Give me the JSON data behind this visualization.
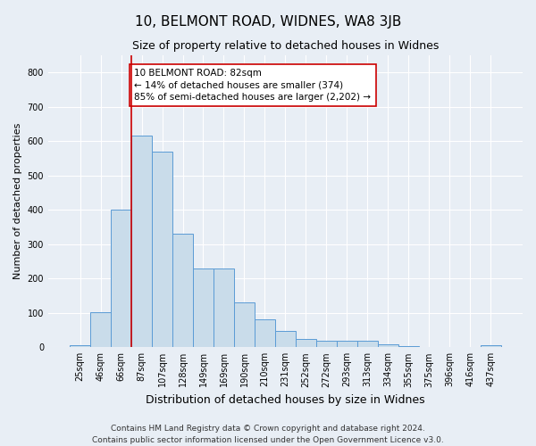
{
  "title": "10, BELMONT ROAD, WIDNES, WA8 3JB",
  "subtitle": "Size of property relative to detached houses in Widnes",
  "xlabel": "Distribution of detached houses by size in Widnes",
  "ylabel": "Number of detached properties",
  "bar_labels": [
    "25sqm",
    "46sqm",
    "66sqm",
    "87sqm",
    "107sqm",
    "128sqm",
    "149sqm",
    "169sqm",
    "190sqm",
    "210sqm",
    "231sqm",
    "252sqm",
    "272sqm",
    "293sqm",
    "313sqm",
    "334sqm",
    "355sqm",
    "375sqm",
    "396sqm",
    "416sqm",
    "437sqm"
  ],
  "bar_values": [
    5,
    103,
    400,
    615,
    570,
    330,
    230,
    230,
    130,
    80,
    47,
    25,
    20,
    20,
    20,
    8,
    3,
    0,
    0,
    0,
    5
  ],
  "bar_color": "#c9dcea",
  "bar_edgecolor": "#5b9bd5",
  "property_line_color": "#cc0000",
  "annotation_text": "10 BELMONT ROAD: 82sqm\n← 14% of detached houses are smaller (374)\n85% of semi-detached houses are larger (2,202) →",
  "annotation_box_facecolor": "white",
  "annotation_box_edgecolor": "#cc0000",
  "ylim": [
    0,
    850
  ],
  "yticks": [
    0,
    100,
    200,
    300,
    400,
    500,
    600,
    700,
    800
  ],
  "footer": "Contains HM Land Registry data © Crown copyright and database right 2024.\nContains public sector information licensed under the Open Government Licence v3.0.",
  "background_color": "#e8eef5",
  "plot_background_color": "#e8eef5",
  "grid_color": "white",
  "title_fontsize": 11,
  "subtitle_fontsize": 9,
  "ylabel_fontsize": 8,
  "xlabel_fontsize": 9,
  "tick_fontsize": 7,
  "footer_fontsize": 6.5,
  "annotation_fontsize": 7.5,
  "line_x_index": 3
}
